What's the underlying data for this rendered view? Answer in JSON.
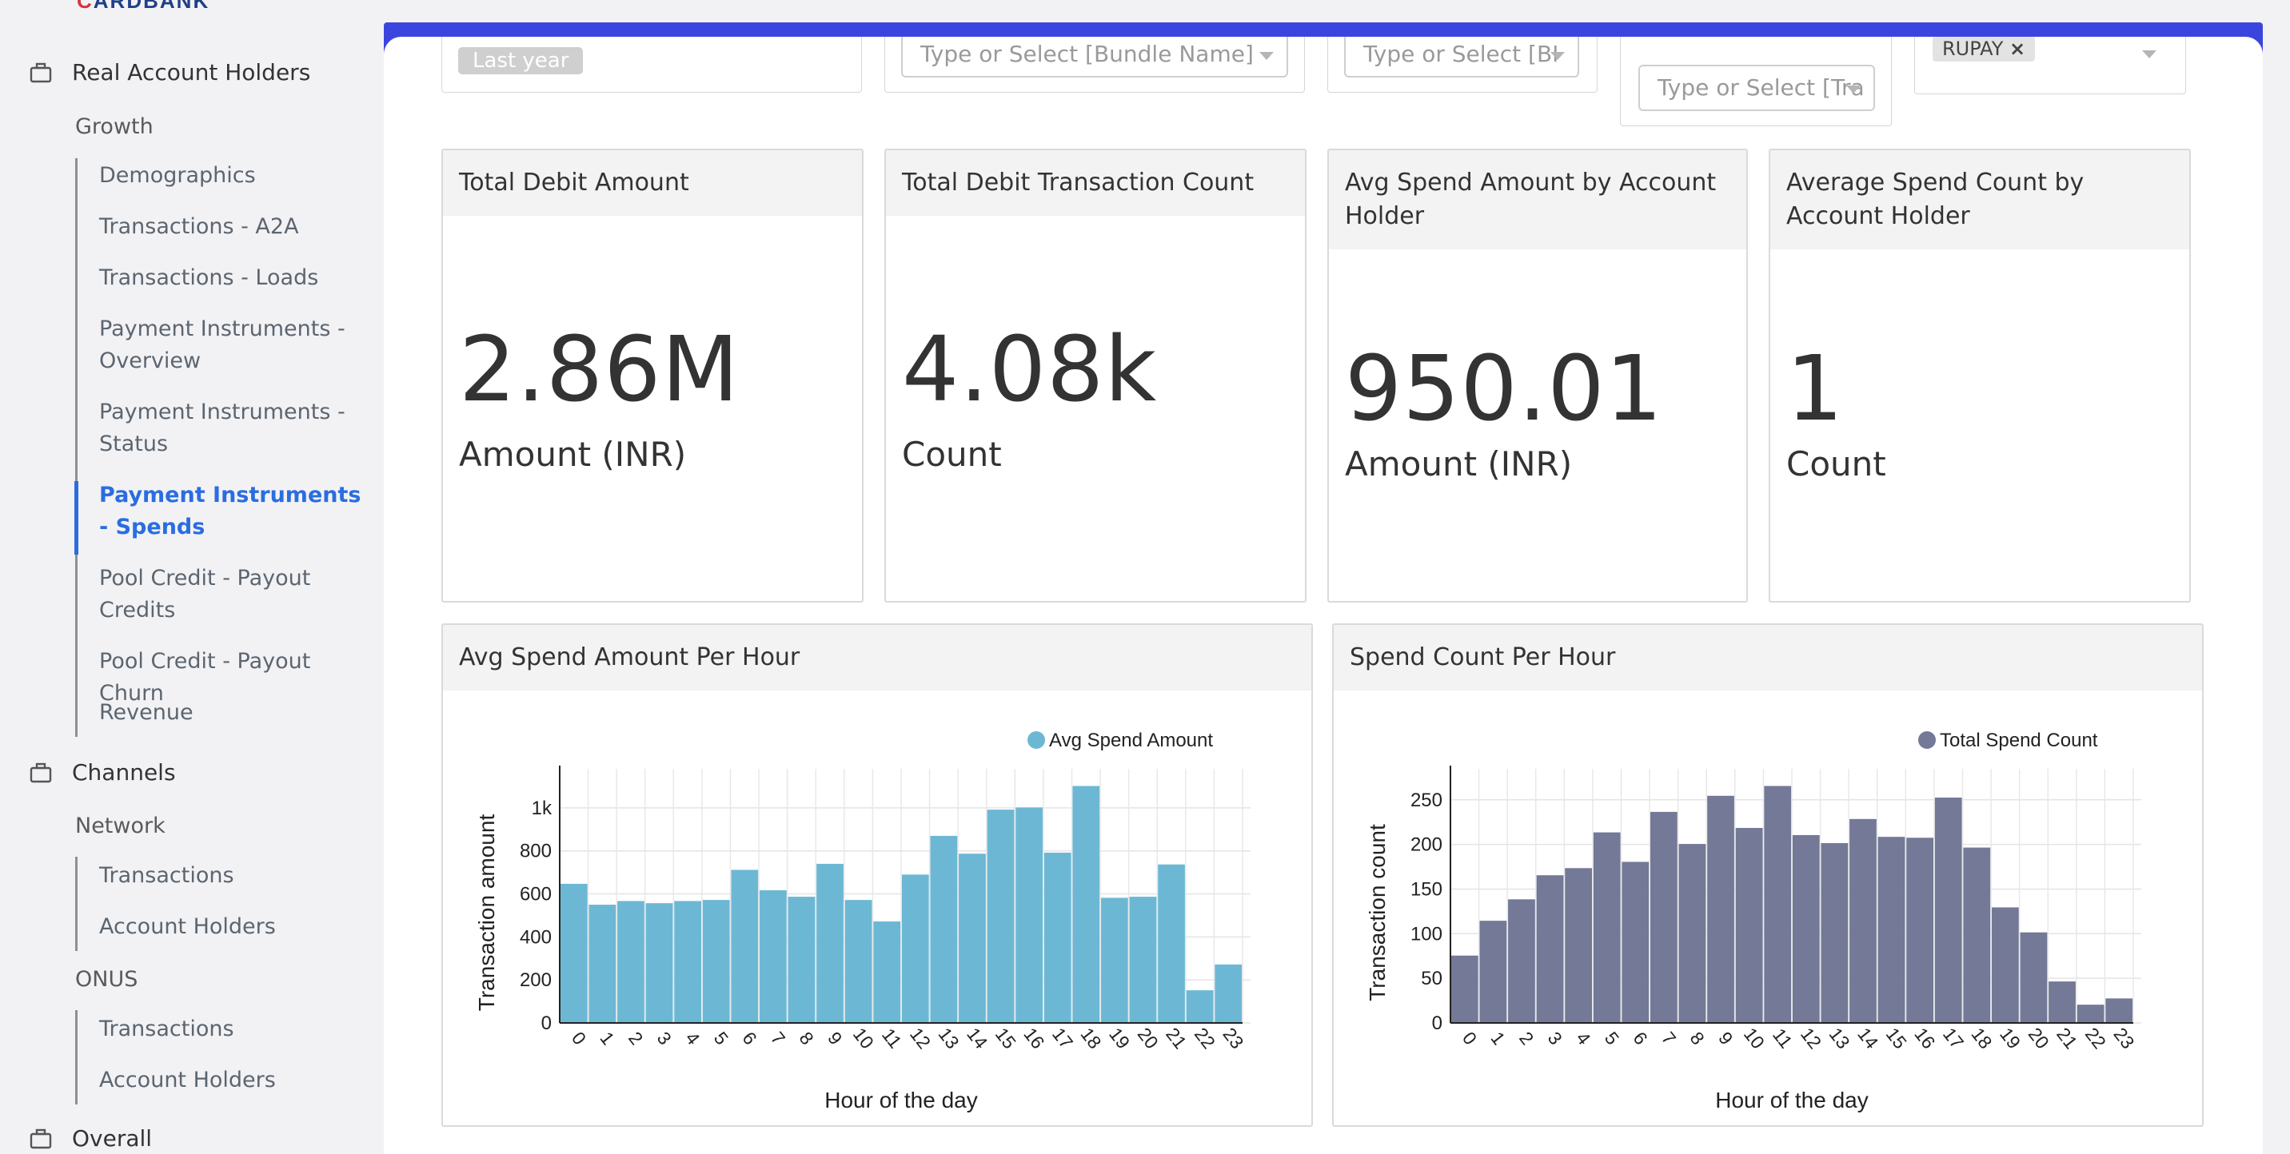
{
  "logo": {
    "left": "C",
    "right": "ARDBANK"
  },
  "sidebar": {
    "sections": [
      {
        "label": "Real Account Holders",
        "icon": "briefcase-icon"
      },
      {
        "label": "Channels",
        "icon": "briefcase-icon"
      },
      {
        "label": "Overall",
        "icon": "briefcase-icon"
      }
    ],
    "growth": {
      "label": "Growth",
      "items": [
        "Demographics",
        "Transactions - A2A",
        "Transactions - Loads",
        "Payment Instruments - Overview",
        "Payment Instruments - Status",
        "Payment Instruments - Spends",
        "Pool Credit - Payout Credits",
        "Pool Credit - Payout Churn",
        "Revenue"
      ],
      "active_index": 5
    },
    "network": {
      "label": "Network",
      "items": [
        "Transactions",
        "Account Holders"
      ]
    },
    "onus": {
      "label": "ONUS",
      "items": [
        "Transactions",
        "Account Holders"
      ]
    }
  },
  "filters": {
    "time_chip": "Last year",
    "bundle_placeholder": "Type or Select [Bundle Name]",
    "f3_placeholder": "Type or Select [BI",
    "f4_placeholder": "Type or Select [Tra",
    "f5_tag": "RUPAY",
    "f5_tag_close": "×"
  },
  "kpis": [
    {
      "title": "Total Debit Amount",
      "value": "2.86M",
      "unit": "Amount (INR)"
    },
    {
      "title": "Total Debit Transaction Count",
      "value": "4.08k",
      "unit": "Count"
    },
    {
      "title": "Avg Spend Amount by Account Holder",
      "value": "950.01",
      "unit": "Amount (INR)"
    },
    {
      "title": "Average Spend Count by Account Holder",
      "value": "1",
      "unit": "Count"
    }
  ],
  "charts": {
    "avg_title": "Avg Spend Amount Per Hour",
    "count_title": "Spend Count Per Hour"
  },
  "chart_data": [
    {
      "type": "bar",
      "title": "Avg Spend Amount Per Hour",
      "xlabel": "Hour of the day",
      "ylabel": "Transaction amount",
      "categories": [
        "0",
        "1",
        "2",
        "3",
        "4",
        "5",
        "6",
        "7",
        "8",
        "9",
        "10",
        "11",
        "12",
        "13",
        "14",
        "15",
        "16",
        "17",
        "18",
        "19",
        "20",
        "21",
        "22",
        "23"
      ],
      "series": [
        {
          "name": "Avg Spend Amount",
          "color": "#6cb8d4",
          "values": [
            645,
            548,
            565,
            555,
            565,
            570,
            710,
            615,
            585,
            738,
            570,
            470,
            688,
            868,
            785,
            990,
            1000,
            790,
            1100,
            580,
            585,
            735,
            150,
            270
          ]
        }
      ],
      "yticks": [
        "0",
        "200",
        "400",
        "600",
        "800",
        "1k"
      ],
      "ytick_values": [
        0,
        200,
        400,
        600,
        800,
        1000
      ],
      "ylim": [
        0,
        1100
      ],
      "legend": "top-right",
      "grid": true
    },
    {
      "type": "bar",
      "title": "Spend Count Per Hour",
      "xlabel": "Hour of the day",
      "ylabel": "Transaction count",
      "categories": [
        "0",
        "1",
        "2",
        "3",
        "4",
        "5",
        "6",
        "7",
        "8",
        "9",
        "10",
        "11",
        "12",
        "13",
        "14",
        "15",
        "16",
        "17",
        "18",
        "19",
        "20",
        "21",
        "22",
        "23"
      ],
      "series": [
        {
          "name": "Total Spend Count",
          "color": "#737996",
          "values": [
            75,
            114,
            138,
            165,
            173,
            213,
            180,
            236,
            200,
            254,
            218,
            265,
            210,
            201,
            228,
            208,
            207,
            252,
            196,
            129,
            101,
            46,
            20,
            27
          ]
        }
      ],
      "yticks": [
        "0",
        "50",
        "100",
        "150",
        "200",
        "250"
      ],
      "ytick_values": [
        0,
        50,
        100,
        150,
        200,
        250
      ],
      "ylim": [
        0,
        265
      ],
      "legend": "top-right",
      "grid": true
    }
  ]
}
